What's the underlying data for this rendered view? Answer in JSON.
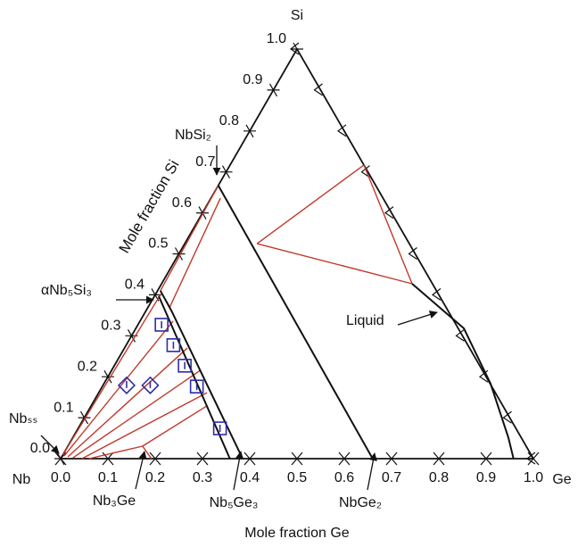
{
  "chart_data": {
    "type": "ternary",
    "corner_labels": [
      "Si",
      "Nb",
      "Ge"
    ],
    "xlabel": "Mole fraction Ge",
    "ylabel": "Mole fraction Si",
    "xlim": [
      0,
      1
    ],
    "ylim": [
      0,
      1
    ],
    "xticks": [
      {
        "value": 0,
        "label": "0.0"
      },
      0.1,
      0.2,
      0.3,
      0.4,
      0.5,
      0.6,
      0.7,
      0.8,
      0.9,
      {
        "value": 1,
        "label": "1.0"
      }
    ],
    "yticks": [
      {
        "value": 0,
        "label": "0.0"
      },
      0.1,
      0.2,
      0.3,
      0.4,
      0.5,
      0.6,
      0.7,
      0.8,
      0.9,
      {
        "value": 1,
        "label": "1.0"
      }
    ],
    "boundaries": {
      "color": "#111111",
      "lines": [
        {
          "x": [
            0,
            0.66
          ],
          "y": [
            0.667,
            0
          ]
        },
        {
          "x": [
            0.009,
            0.358
          ],
          "y": [
            0.397,
            0
          ]
        },
        {
          "x": [
            0.006,
            0.053,
            0.385
          ],
          "y": [
            0.41,
            0.362,
            0
          ]
        },
        {
          "x": [
            0.53,
            0.694,
            0.818,
            0.921,
            0.958
          ],
          "y": [
            0.427,
            0.318,
            0.183,
            0.052,
            0
          ]
        }
      ]
    },
    "tie_lines": {
      "color": "#c0392b",
      "lines": [
        {
          "x": [
            0,
            0.006
          ],
          "y": [
            0.667,
            0.41
          ]
        },
        {
          "x": [
            0.02,
            0.046
          ],
          "y": [
            0.636,
            0.368
          ]
        },
        {
          "x": [
            0.153,
            0.283
          ],
          "y": [
            0.525,
            0.717
          ]
        },
        {
          "x": [
            0.153,
            0.53
          ],
          "y": [
            0.525,
            0.427
          ]
        },
        {
          "x": [
            0.283,
            0.53
          ],
          "y": [
            0.717,
            0.427
          ]
        },
        {
          "x": [
            0,
            0.011
          ],
          "y": [
            0.009,
            0.401
          ]
        },
        {
          "x": [
            0.004,
            0.07
          ],
          "y": [
            0.0065,
            0.336
          ]
        },
        {
          "x": [
            0.013,
            0.133
          ],
          "y": [
            0.0044,
            0.27
          ]
        },
        {
          "x": [
            0.025,
            0.188
          ],
          "y": [
            0.002,
            0.216
          ]
        },
        {
          "x": [
            0.045,
            0.229
          ],
          "y": [
            0,
            0.161
          ]
        },
        {
          "x": [
            0.06,
            0.158
          ],
          "y": [
            0,
            0.0305
          ]
        },
        {
          "x": [
            0.158,
            0.245
          ],
          "y": [
            0.0305,
            0.129
          ]
        },
        {
          "x": [
            0.158,
            0.192
          ],
          "y": [
            0.0305,
            0
          ]
        }
      ]
    },
    "points": [
      {
        "marker": "square",
        "color": "#2e2ea8",
        "x": [
          0.05,
          0.1,
          0.149,
          0.2,
          0.3
        ],
        "y": [
          0.327,
          0.277,
          0.227,
          0.176,
          0.074
        ]
      },
      {
        "marker": "diamond",
        "color": "#2e2ea8",
        "x": [
          0.05,
          0.1
        ],
        "y": [
          0.179,
          0.179
        ]
      }
    ],
    "annotations": [
      "NbSi₂",
      "αNb₅Si₃",
      "Nbₛₛ",
      "Nb₃Ge",
      "Nb₅Ge₃",
      "NbGe₂",
      "Liquid"
    ]
  }
}
